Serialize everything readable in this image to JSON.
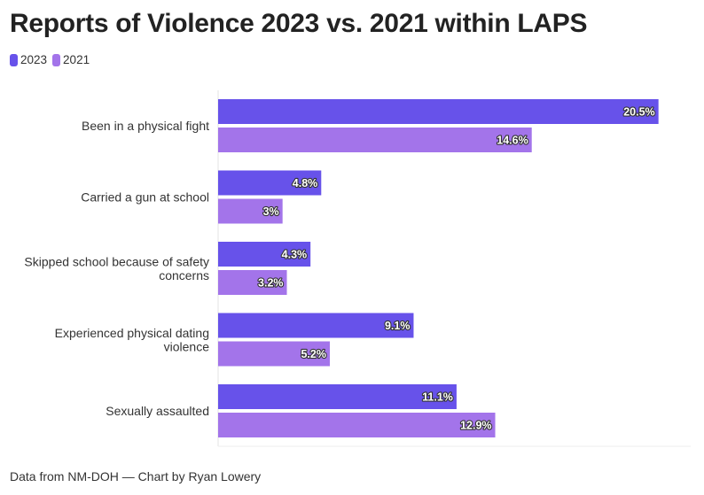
{
  "title": "Reports of Violence 2023 vs. 2021 within LAPS",
  "source": "Data from NM-DOH — Chart by Ryan Lowery",
  "chart_data": {
    "type": "bar",
    "orientation": "horizontal",
    "title": "Reports of Violence 2023 vs. 2021 within LAPS",
    "categories": [
      "Been in a physical fight",
      "Carried a gun at school",
      "Skipped school because of safety concerns",
      "Experienced physical dating violence",
      "Sexually assaulted"
    ],
    "category_lines": [
      [
        "Been in a physical fight"
      ],
      [
        "Carried a gun at school"
      ],
      [
        "Skipped school because of safety",
        "concerns"
      ],
      [
        "Experienced physical dating",
        "violence"
      ],
      [
        "Sexually assaulted"
      ]
    ],
    "series": [
      {
        "name": "2023",
        "color": "#6752ea",
        "values": [
          20.5,
          4.8,
          4.3,
          9.1,
          11.1
        ],
        "labels": [
          "20.5%",
          "4.8%",
          "4.3%",
          "9.1%",
          "11.1%"
        ]
      },
      {
        "name": "2021",
        "color": "#a374ea",
        "values": [
          14.6,
          3,
          3.2,
          5.2,
          12.9
        ],
        "labels": [
          "14.6%",
          "3%",
          "3.2%",
          "5.2%",
          "12.9%"
        ]
      }
    ],
    "xlim": [
      0,
      22
    ],
    "grid": false,
    "legend": "top-left",
    "xlabel": "",
    "ylabel": ""
  }
}
